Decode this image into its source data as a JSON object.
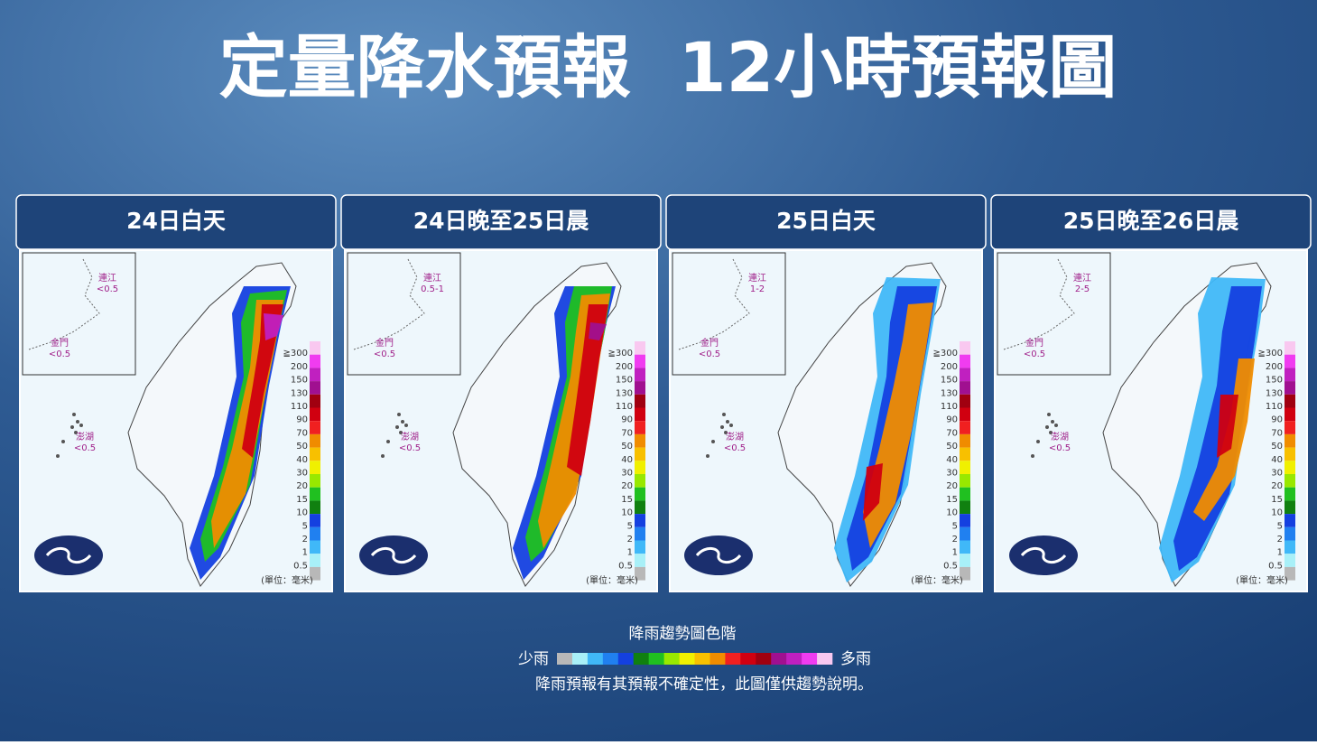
{
  "header": {
    "title": "定量降水預報  12小時預報圖"
  },
  "scale": {
    "labels": [
      "≧300",
      "200",
      "150",
      "130",
      "110",
      "90",
      "70",
      "50",
      "40",
      "30",
      "20",
      "15",
      "10",
      "5",
      "2",
      "1",
      "0.5"
    ],
    "colors": [
      "#f9c8f0",
      "#f03cf0",
      "#c020c0",
      "#a01090",
      "#a00010",
      "#d00010",
      "#f02020",
      "#f08c00",
      "#f8c000",
      "#f0f000",
      "#98e800",
      "#20c020",
      "#108010",
      "#1440e0",
      "#2080f0",
      "#40b8f8",
      "#a8f0f8"
    ],
    "bottom_color": "#b8b8b8",
    "unit": "(單位：毫米)"
  },
  "panels": [
    {
      "title": "24日白天",
      "matsu": {
        "name": "連江",
        "value": "<0.5"
      },
      "kinmen": {
        "name": "金門",
        "value": "<0.5"
      },
      "penghu": {
        "name": "澎湖",
        "value": "<0.5"
      }
    },
    {
      "title": "24日晚至25日晨",
      "matsu": {
        "name": "連江",
        "value": "0.5-1"
      },
      "kinmen": {
        "name": "金門",
        "value": "<0.5"
      },
      "penghu": {
        "name": "澎湖",
        "value": "<0.5"
      }
    },
    {
      "title": "25日白天",
      "matsu": {
        "name": "連江",
        "value": "1-2"
      },
      "kinmen": {
        "name": "金門",
        "value": "<0.5"
      },
      "penghu": {
        "name": "澎湖",
        "value": "<0.5"
      }
    },
    {
      "title": "25日晚至26日晨",
      "matsu": {
        "name": "連江",
        "value": "2-5"
      },
      "kinmen": {
        "name": "金門",
        "value": "<0.5"
      },
      "penghu": {
        "name": "澎湖",
        "value": "<0.5"
      }
    }
  ],
  "legend": {
    "title": "降雨趨勢圖色階",
    "less": "少雨",
    "more": "多雨",
    "note": "降雨預報有其預報不確定性，此圖僅供趨勢說明。"
  }
}
